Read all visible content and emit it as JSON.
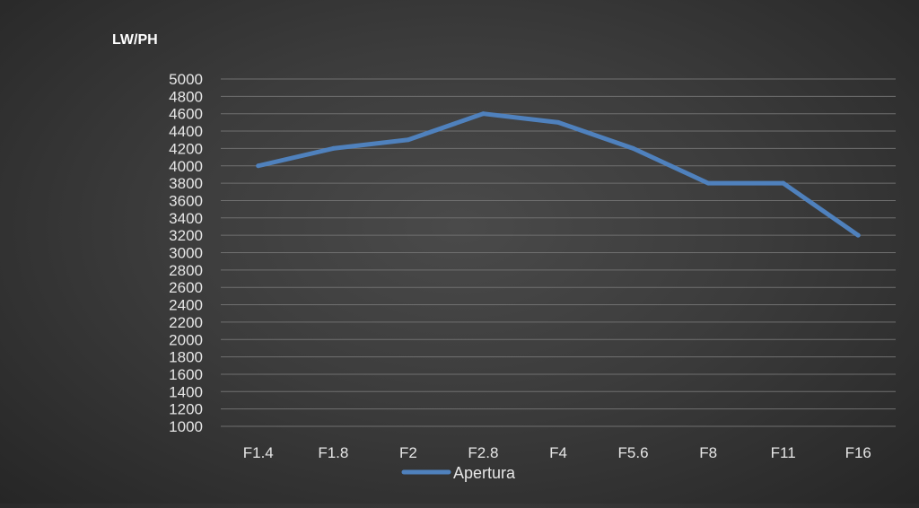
{
  "chart_data": {
    "type": "line",
    "title": "",
    "xlabel": "",
    "ylabel": "LW/PH",
    "categories": [
      "F1.4",
      "F1.8",
      "F2",
      "F2.8",
      "F4",
      "F5.6",
      "F8",
      "F11",
      "F16"
    ],
    "series": [
      {
        "name": "Apertura",
        "values": [
          4000,
          4200,
          4300,
          4600,
          4500,
          4200,
          3800,
          3800,
          3200
        ],
        "color": "#4f81bd"
      }
    ],
    "ylim": [
      1000,
      5000
    ],
    "yticks": [
      "5000",
      "4800",
      "4600",
      "4400",
      "4200",
      "4000",
      "3800",
      "3600",
      "3400",
      "3200",
      "3000",
      "2800",
      "2600",
      "2400",
      "2200",
      "2000",
      "1800",
      "1600",
      "1400",
      "1200",
      "1000"
    ],
    "grid": true,
    "legend": "bottom",
    "background": "#3c3c3c",
    "gridline_color": "#707070",
    "text_color": "#e6e6e6"
  }
}
